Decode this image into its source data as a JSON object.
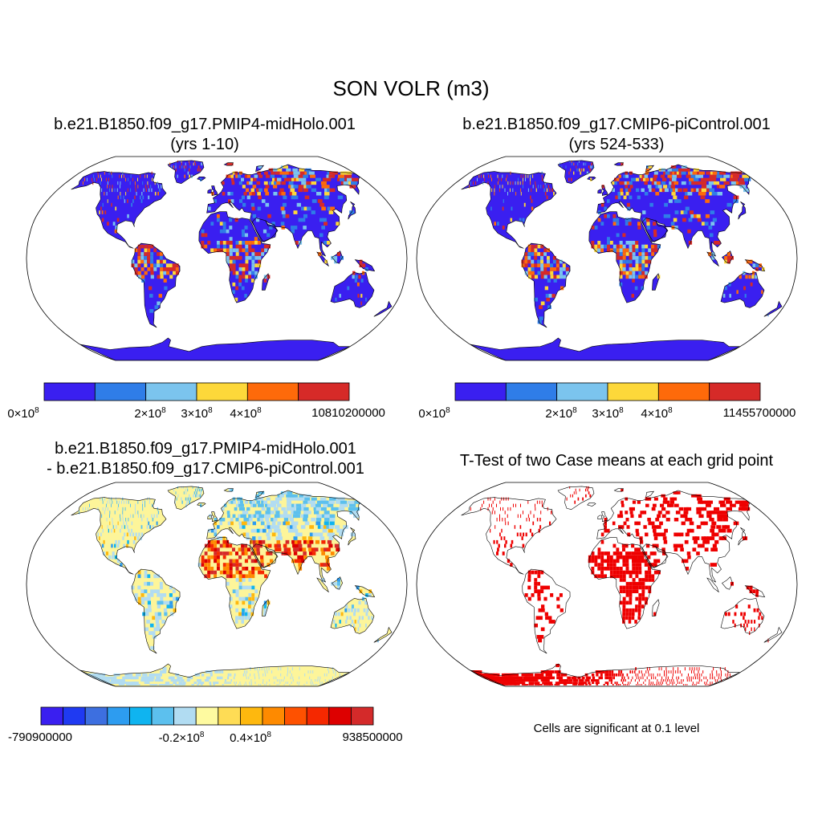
{
  "main_title": "SON VOLR (m3)",
  "panels": [
    {
      "title_line1": "b.e21.B1850.f09_g17.PMIP4-midHolo.001",
      "title_line2": "(yrs 1-10)",
      "colorbar": {
        "colors": [
          "#3a1ff0",
          "#2f7de8",
          "#7bc4ee",
          "#fdd83a",
          "#fe6a0a",
          "#d62a28"
        ],
        "labels": [
          {
            "mantissa": "0",
            "times": "×",
            "base": "10",
            "exp": "8"
          },
          {
            "mantissa": "2",
            "times": "×",
            "base": "10",
            "exp": "8"
          },
          {
            "mantissa": "3",
            "times": "×",
            "base": "10",
            "exp": "8"
          },
          {
            "mantissa": "4",
            "times": "×",
            "base": "10",
            "exp": "8"
          },
          {
            "text": "10810200000"
          }
        ]
      }
    },
    {
      "title_line1": "b.e21.B1850.f09_g17.CMIP6-piControl.001",
      "title_line2": "(yrs 524-533)",
      "colorbar": {
        "colors": [
          "#3a1ff0",
          "#2f7de8",
          "#7bc4ee",
          "#fdd83a",
          "#fe6a0a",
          "#d62a28"
        ],
        "labels": [
          {
            "mantissa": "0",
            "times": "×",
            "base": "10",
            "exp": "8"
          },
          {
            "mantissa": "2",
            "times": "×",
            "base": "10",
            "exp": "8"
          },
          {
            "mantissa": "3",
            "times": "×",
            "base": "10",
            "exp": "8"
          },
          {
            "mantissa": "4",
            "times": "×",
            "base": "10",
            "exp": "8"
          },
          {
            "text": "11455700000"
          }
        ]
      }
    },
    {
      "title_line1": "b.e21.B1850.f09_g17.PMIP4-midHolo.001",
      "title_line2": "- b.e21.B1850.f09_g17.CMIP6-piControl.001",
      "colorbar": {
        "colors": [
          "#3a1ff0",
          "#1f3af2",
          "#3d6fe0",
          "#2d9cf0",
          "#0fb4f0",
          "#5cc0ee",
          "#b1dcf2",
          "#fefaa0",
          "#fedc55",
          "#feb80e",
          "#fe8a00",
          "#fe5100",
          "#f52800",
          "#dd0000",
          "#d42a2a"
        ],
        "labels": [
          {
            "text": "-790900000"
          },
          {
            "mantissa": "-0.2",
            "times": "×",
            "base": "10",
            "exp": "8"
          },
          {
            "mantissa": "0.4",
            "times": "×",
            "base": "10",
            "exp": "8"
          },
          {
            "text": "938500000"
          }
        ]
      }
    },
    {
      "title_line1": "T-Test of two Case means at each grid point",
      "note": "Cells are significant at 0.1 level"
    }
  ],
  "colors": {
    "ocean": "#ffffff",
    "land_base_abs": "#3a1ff0",
    "land_base_diff": "#fdf59a",
    "significant": "#ee0000",
    "coast": "#000000"
  }
}
